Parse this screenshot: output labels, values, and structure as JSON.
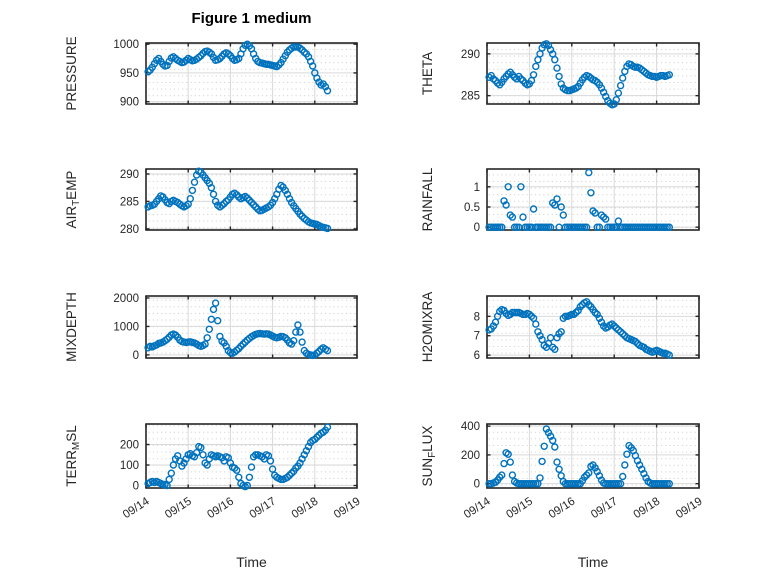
{
  "figure": {
    "title": "Figure 1 medium",
    "xlabel": "Time"
  },
  "colors": {
    "marker": "#0072BD",
    "axes": "#262626",
    "text": "#262626",
    "grid_major": "#d9d9d9",
    "grid_minor_dot": "#c6c6c6",
    "background": "#ffffff"
  },
  "x_axis": {
    "xlim": [
      0,
      5
    ],
    "tick_values": [
      0,
      1,
      2,
      3,
      4,
      5
    ],
    "tick_labels": [
      "09/14",
      "09/15",
      "09/16",
      "09/17",
      "09/18",
      "09/19"
    ],
    "label": "Time"
  },
  "chart_data": [
    {
      "type": "scatter",
      "name": "pressure",
      "label": "PRESSURE",
      "label_parts": [
        {
          "t": "PRESSURE"
        }
      ],
      "row": 0,
      "col": 0,
      "ylim": [
        896,
        1002
      ],
      "yticks": [
        900,
        950,
        1000
      ],
      "ytick_labels": [
        "900",
        "950",
        "1000"
      ],
      "series": {
        "t0": 0.05,
        "dt": 0.05,
        "values": [
          952,
          955,
          960,
          966,
          972,
          975,
          970,
          965,
          962,
          963,
          970,
          976,
          978,
          975,
          972,
          970,
          968,
          969,
          972,
          975,
          973,
          971,
          972,
          974,
          977,
          980,
          984,
          987,
          988,
          986,
          983,
          977,
          972,
          973,
          975,
          979,
          983,
          985,
          983,
          980,
          975,
          972,
          973,
          975,
          983,
          992,
          998,
          1000,
          997,
          992,
          983,
          975,
          970,
          968,
          967,
          966,
          965,
          965,
          964,
          963,
          962,
          961,
          964,
          968,
          974,
          980,
          986,
          990,
          993,
          995,
          995,
          995,
          993,
          990,
          986,
          983,
          978,
          970,
          962,
          950,
          941,
          934,
          929,
          931,
          926,
          919
        ]
      }
    },
    {
      "type": "scatter",
      "name": "theta",
      "label": "THETA",
      "label_parts": [
        {
          "t": "THETA"
        }
      ],
      "row": 0,
      "col": 1,
      "ylim": [
        284.0,
        291.3
      ],
      "yticks": [
        285,
        290
      ],
      "ytick_labels": [
        "285",
        "290"
      ],
      "series": {
        "t0": 0.05,
        "dt": 0.05,
        "values": [
          287.2,
          287.4,
          287.0,
          286.8,
          286.5,
          286.3,
          286.6,
          287.0,
          287.3,
          287.6,
          287.8,
          287.5,
          287.2,
          287.0,
          287.3,
          287.0,
          286.8,
          286.5,
          286.3,
          286.4,
          286.8,
          287.5,
          288.5,
          289.3,
          290.0,
          290.7,
          291.1,
          291.2,
          291.0,
          290.5,
          290.0,
          289.3,
          288.3,
          287.3,
          286.4,
          285.9,
          285.7,
          285.6,
          285.6,
          285.7,
          285.8,
          285.9,
          286.1,
          286.5,
          286.9,
          287.2,
          287.4,
          287.3,
          287.1,
          286.9,
          286.8,
          286.6,
          286.3,
          285.9,
          285.4,
          284.9,
          284.4,
          284.1,
          283.9,
          284.0,
          284.5,
          285.3,
          286.2,
          287.1,
          287.9,
          288.5,
          288.8,
          288.7,
          288.5,
          288.4,
          288.4,
          288.3,
          288.1,
          287.9,
          287.7,
          287.5,
          287.4,
          287.3,
          287.3,
          287.2,
          287.3,
          287.4,
          287.4,
          287.3,
          287.4,
          287.5
        ]
      }
    },
    {
      "type": "scatter",
      "name": "air-temp",
      "label": "AIR_TEMP",
      "label_parts": [
        {
          "t": "AIR"
        },
        {
          "t": "T",
          "sub": true
        },
        {
          "t": "EMP"
        }
      ],
      "row": 1,
      "col": 0,
      "ylim": [
        279.8,
        290.9
      ],
      "yticks": [
        280,
        285,
        290
      ],
      "ytick_labels": [
        "280",
        "285",
        "290"
      ],
      "series": {
        "t0": 0.05,
        "dt": 0.05,
        "values": [
          284.0,
          284.2,
          284.3,
          284.5,
          285.0,
          285.5,
          286.0,
          285.8,
          285.3,
          284.8,
          284.6,
          285.0,
          285.2,
          285.0,
          284.8,
          284.5,
          284.2,
          284.0,
          284.2,
          284.5,
          285.5,
          287.0,
          288.5,
          289.8,
          290.5,
          290.3,
          289.8,
          289.3,
          288.8,
          288.3,
          287.5,
          286.3,
          285.0,
          284.3,
          284.0,
          284.3,
          284.6,
          285.0,
          285.3,
          285.8,
          286.3,
          286.5,
          286.2,
          285.8,
          285.5,
          285.7,
          285.9,
          285.6,
          285.2,
          284.8,
          284.4,
          284.0,
          283.6,
          283.3,
          283.4,
          283.6,
          283.8,
          284.0,
          284.3,
          284.8,
          285.5,
          286.3,
          287.2,
          287.9,
          287.6,
          287.0,
          286.3,
          285.5,
          284.8,
          284.2,
          283.7,
          283.2,
          282.7,
          282.3,
          281.9,
          281.6,
          281.3,
          281.1,
          281.0,
          280.9,
          280.8,
          280.6,
          280.4,
          280.3,
          280.2,
          280.1
        ]
      }
    },
    {
      "type": "scatter",
      "name": "rainfall",
      "label": "RAINFALL",
      "label_parts": [
        {
          "t": "RAINFALL"
        }
      ],
      "row": 1,
      "col": 1,
      "ylim": [
        -0.07,
        1.44
      ],
      "yticks": [
        0,
        0.5,
        1
      ],
      "ytick_labels": [
        "0",
        "0.5",
        "1"
      ],
      "series": {
        "t0": 0.05,
        "dt": 0.05,
        "values": [
          0,
          0,
          0,
          0,
          0,
          0,
          0,
          0.65,
          0.55,
          1,
          0.3,
          0.25,
          0,
          0,
          0,
          1,
          0.25,
          0,
          0,
          0,
          0,
          0.45,
          0,
          0,
          0,
          0,
          0,
          0,
          0,
          0,
          0.6,
          0.55,
          0.7,
          0,
          0.5,
          0.3,
          0,
          0,
          0,
          0,
          0,
          0,
          0,
          0,
          0,
          0,
          0,
          1.35,
          0.85,
          0.4,
          0.35,
          0,
          0,
          0.3,
          0.25,
          0.2,
          0,
          0,
          0,
          0,
          0,
          0.15,
          0,
          0,
          0,
          0,
          0,
          0,
          0,
          0,
          0,
          0,
          0,
          0,
          0,
          0,
          0,
          0,
          0,
          0,
          0,
          0,
          0,
          0,
          0,
          0
        ]
      }
    },
    {
      "type": "scatter",
      "name": "mixdepth",
      "label": "MIXDEPTH",
      "label_parts": [
        {
          "t": "MIXDEPTH"
        }
      ],
      "row": 2,
      "col": 0,
      "ylim": [
        -110,
        2070
      ],
      "yticks": [
        0,
        1000,
        2000
      ],
      "ytick_labels": [
        "0",
        "1000",
        "2000"
      ],
      "series": {
        "t0": 0.05,
        "dt": 0.05,
        "values": [
          250,
          300,
          280,
          320,
          350,
          400,
          420,
          450,
          500,
          550,
          620,
          700,
          730,
          700,
          620,
          520,
          470,
          450,
          440,
          450,
          460,
          440,
          420,
          380,
          330,
          300,
          330,
          380,
          600,
          900,
          1250,
          1600,
          1820,
          1200,
          650,
          480,
          420,
          300,
          150,
          80,
          60,
          100,
          160,
          220,
          300,
          380,
          450,
          520,
          580,
          640,
          680,
          720,
          740,
          750,
          740,
          730,
          740,
          730,
          700,
          660,
          620,
          600,
          620,
          650,
          640,
          600,
          520,
          420,
          380,
          500,
          800,
          1050,
          800,
          450,
          150,
          60,
          20,
          0,
          -20,
          0,
          60,
          120,
          200,
          250,
          200,
          150
        ]
      }
    },
    {
      "type": "scatter",
      "name": "h2omixra",
      "label": "H2OMIXRA",
      "label_parts": [
        {
          "t": "H2OMIXRA"
        }
      ],
      "row": 2,
      "col": 1,
      "ylim": [
        5.85,
        9.05
      ],
      "yticks": [
        6,
        7,
        8
      ],
      "ytick_labels": [
        "6",
        "7",
        "8"
      ],
      "series": {
        "t0": 0.05,
        "dt": 0.05,
        "values": [
          7.3,
          7.35,
          7.5,
          7.7,
          8.0,
          8.25,
          8.35,
          8.3,
          8.15,
          8.05,
          8.1,
          8.2,
          8.2,
          8.2,
          8.2,
          8.15,
          8.1,
          8.1,
          8.15,
          8.1,
          8.0,
          7.9,
          7.6,
          7.2,
          7.0,
          6.8,
          6.5,
          6.4,
          6.6,
          6.9,
          6.4,
          6.3,
          6.9,
          7.1,
          7.2,
          7.9,
          8.0,
          8.0,
          8.05,
          8.1,
          8.1,
          8.2,
          8.3,
          8.5,
          8.6,
          8.7,
          8.75,
          8.6,
          8.5,
          8.35,
          8.2,
          8.1,
          7.9,
          7.7,
          7.5,
          7.4,
          7.45,
          7.55,
          7.6,
          7.5,
          7.4,
          7.3,
          7.2,
          7.1,
          7.0,
          6.9,
          6.85,
          6.8,
          6.75,
          6.7,
          6.6,
          6.5,
          6.45,
          6.4,
          6.3,
          6.25,
          6.2,
          6.15,
          6.2,
          6.25,
          6.2,
          6.15,
          6.1,
          6.1,
          6.05,
          6.0
        ]
      }
    },
    {
      "type": "scatter",
      "name": "terr-msl",
      "label": "TERR_MSL",
      "label_parts": [
        {
          "t": "TERR"
        },
        {
          "t": "M",
          "sub": true
        },
        {
          "t": "SL"
        }
      ],
      "row": 3,
      "col": 0,
      "ylim": [
        -12,
        300
      ],
      "yticks": [
        0,
        100,
        200
      ],
      "ytick_labels": [
        "0",
        "100",
        "200"
      ],
      "series": {
        "t0": 0.05,
        "dt": 0.05,
        "values": [
          10,
          15,
          20,
          15,
          20,
          15,
          10,
          5,
          5,
          0,
          30,
          60,
          100,
          130,
          145,
          120,
          95,
          110,
          130,
          150,
          155,
          145,
          140,
          160,
          190,
          185,
          150,
          110,
          100,
          130,
          150,
          145,
          140,
          145,
          140,
          135,
          120,
          140,
          135,
          110,
          90,
          85,
          75,
          40,
          10,
          0,
          -5,
          0,
          40,
          90,
          140,
          150,
          150,
          145,
          140,
          130,
          150,
          145,
          120,
          80,
          50,
          40,
          35,
          30,
          30,
          35,
          40,
          50,
          60,
          70,
          85,
          95,
          110,
          130,
          150,
          170,
          190,
          210,
          220,
          225,
          235,
          245,
          255,
          260,
          270,
          285
        ]
      }
    },
    {
      "type": "scatter",
      "name": "sun-flux",
      "label": "SUN_FLUX",
      "label_parts": [
        {
          "t": "SUN"
        },
        {
          "t": "F",
          "sub": true
        },
        {
          "t": "LUX"
        }
      ],
      "row": 3,
      "col": 1,
      "ylim": [
        -30,
        415
      ],
      "yticks": [
        0,
        200,
        400
      ],
      "ytick_labels": [
        "0",
        "200",
        "400"
      ],
      "series": {
        "t0": 0.05,
        "dt": 0.05,
        "values": [
          0,
          0,
          5,
          10,
          25,
          45,
          60,
          140,
          215,
          205,
          150,
          60,
          15,
          5,
          0,
          0,
          0,
          0,
          0,
          0,
          0,
          0,
          0,
          0,
          40,
          155,
          260,
          380,
          355,
          330,
          300,
          255,
          150,
          100,
          55,
          15,
          0,
          0,
          0,
          0,
          0,
          0,
          0,
          0,
          20,
          45,
          60,
          75,
          120,
          130,
          110,
          85,
          55,
          25,
          5,
          0,
          0,
          0,
          0,
          0,
          0,
          0,
          0,
          50,
          130,
          205,
          265,
          250,
          230,
          195,
          160,
          130,
          100,
          70,
          40,
          15,
          5,
          0,
          0,
          0,
          0,
          0,
          0,
          0,
          0,
          0
        ]
      }
    }
  ]
}
